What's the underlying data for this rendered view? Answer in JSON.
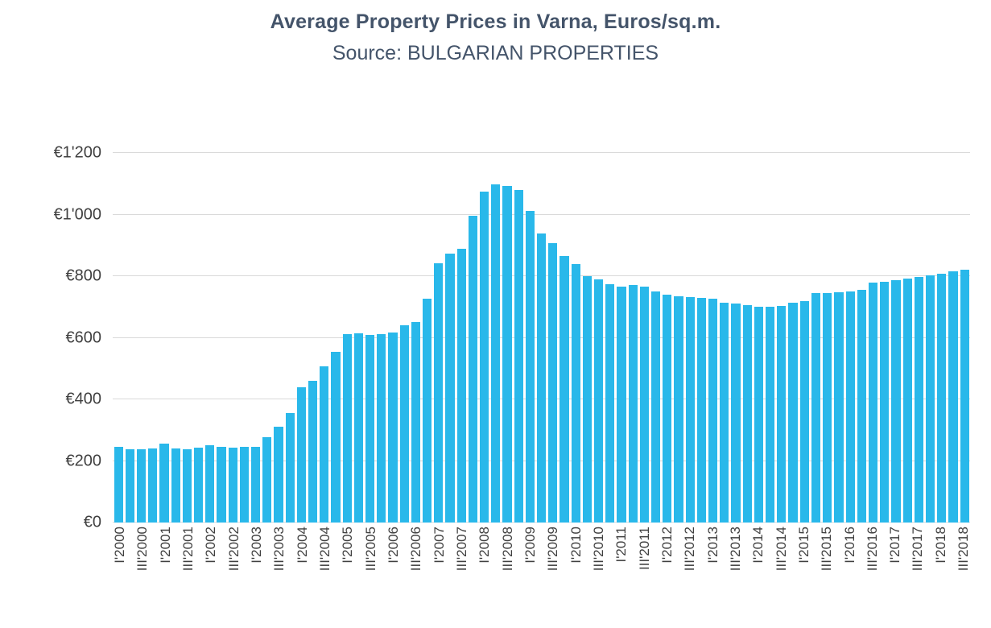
{
  "colors": {
    "bar": "#29b8ea",
    "grid": "#d9d9d9",
    "title_text": "#44546a",
    "axis_text": "#404040"
  },
  "chart_data": {
    "type": "bar",
    "title": "Average Property Prices in Varna, Euros/sq.m.",
    "subtitle": "Source: BULGARIAN PROPERTIES",
    "xlabel": "",
    "ylabel": "",
    "ylim": [
      0,
      1200
    ],
    "grid": true,
    "legend": false,
    "label_every": 2,
    "y_tick_values": [
      0,
      200,
      400,
      600,
      800,
      1000,
      1200
    ],
    "y_ticks": [
      "€0",
      "€200",
      "€400",
      "€600",
      "€800",
      "€1'000",
      "€1'200"
    ],
    "x_tick_labels": [
      "I'2000",
      "III'2000",
      "I'2001",
      "III'2001",
      "I'2002",
      "III'2002",
      "I'2003",
      "III'2003",
      "I'2004",
      "III'2004",
      "I'2005",
      "III'2005",
      "I'2006",
      "III'2006",
      "I'2007",
      "III'2007",
      "I'2008",
      "III'2008",
      "I'2009",
      "III'2009",
      "I'2010",
      "III'2010",
      "I'2011",
      "III'2011",
      "I'2012",
      "III'2012",
      "I'2013",
      "III'2013",
      "I'2014",
      "III'2014",
      "I'2015",
      "III'2015",
      "I'2016",
      "III'2016",
      "I'2017",
      "III'2017",
      "I'2018",
      "III'2018"
    ],
    "categories": [
      "I'2000",
      "II'2000",
      "III'2000",
      "IV'2000",
      "I'2001",
      "II'2001",
      "III'2001",
      "IV'2001",
      "I'2002",
      "II'2002",
      "III'2002",
      "IV'2002",
      "I'2003",
      "II'2003",
      "III'2003",
      "IV'2003",
      "I'2004",
      "II'2004",
      "III'2004",
      "IV'2004",
      "I'2005",
      "II'2005",
      "III'2005",
      "IV'2005",
      "I'2006",
      "II'2006",
      "III'2006",
      "IV'2006",
      "I'2007",
      "II'2007",
      "III'2007",
      "IV'2007",
      "I'2008",
      "II'2008",
      "III'2008",
      "IV'2008",
      "I'2009",
      "II'2009",
      "III'2009",
      "IV'2009",
      "I'2010",
      "II'2010",
      "III'2010",
      "IV'2010",
      "I'2011",
      "II'2011",
      "III'2011",
      "IV'2011",
      "I'2012",
      "II'2012",
      "III'2012",
      "IV'2012",
      "I'2013",
      "II'2013",
      "III'2013",
      "IV'2013",
      "I'2014",
      "II'2014",
      "III'2014",
      "IV'2014",
      "I'2015",
      "II'2015",
      "III'2015",
      "IV'2015",
      "I'2016",
      "II'2016",
      "III'2016",
      "IV'2016",
      "I'2017",
      "II'2017",
      "III'2017",
      "IV'2017",
      "I'2018",
      "II'2018",
      "III'2018"
    ],
    "values": [
      245,
      238,
      237,
      240,
      257,
      241,
      238,
      242,
      252,
      246,
      244,
      246,
      247,
      277,
      310,
      355,
      438,
      460,
      507,
      553,
      613,
      615,
      608,
      611,
      618,
      640,
      652,
      727,
      843,
      872,
      890,
      995,
      1075,
      1097,
      1092,
      1080,
      1013,
      938,
      908,
      865,
      840,
      800,
      790,
      775,
      765,
      770,
      767,
      750,
      740,
      735,
      732,
      730,
      727,
      715,
      710,
      705,
      700,
      700,
      703,
      714,
      719,
      744,
      745,
      748,
      750,
      755,
      779,
      783,
      788,
      792,
      797,
      803,
      808,
      815,
      822
    ]
  }
}
